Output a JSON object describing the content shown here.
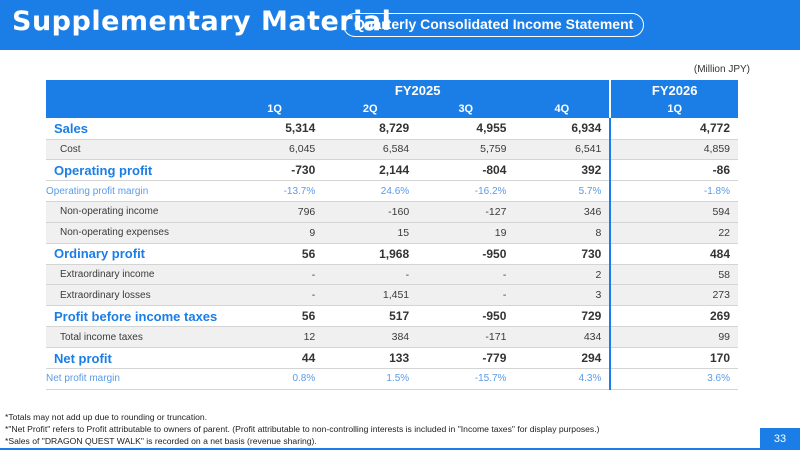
{
  "header": {
    "title": "Supplementary Material",
    "subtitle": "Quarterly Consolidated Income Statement"
  },
  "unit": "(Million JPY)",
  "table": {
    "fy2025": "FY2025",
    "fy2026": "FY2026",
    "quarters": [
      "1Q",
      "2Q",
      "3Q",
      "4Q",
      "1Q"
    ],
    "rows": [
      {
        "type": "main",
        "label": "Sales",
        "values": [
          "5,314",
          "8,729",
          "4,955",
          "6,934",
          "4,772"
        ]
      },
      {
        "type": "sub",
        "label": "Cost",
        "values": [
          "6,045",
          "6,584",
          "5,759",
          "6,541",
          "4,859"
        ]
      },
      {
        "type": "main",
        "label": "Operating profit",
        "values": [
          "-730",
          "2,144",
          "-804",
          "392",
          "-86"
        ]
      },
      {
        "type": "ratio",
        "label": "Operating profit margin",
        "values": [
          "-13.7%",
          "24.6%",
          "-16.2%",
          "5.7%",
          "-1.8%"
        ]
      },
      {
        "type": "sub",
        "label": "Non-operating income",
        "values": [
          "796",
          "-160",
          "-127",
          "346",
          "594"
        ]
      },
      {
        "type": "sub",
        "label": "Non-operating expenses",
        "values": [
          "9",
          "15",
          "19",
          "8",
          "22"
        ]
      },
      {
        "type": "main",
        "label": "Ordinary profit",
        "values": [
          "56",
          "1,968",
          "-950",
          "730",
          "484"
        ]
      },
      {
        "type": "sub",
        "label": "Extraordinary income",
        "values": [
          "-",
          "-",
          "-",
          "2",
          "58"
        ]
      },
      {
        "type": "sub",
        "label": "Extraordinary losses",
        "values": [
          "-",
          "1,451",
          "-",
          "3",
          "273"
        ]
      },
      {
        "type": "main",
        "label": "Profit before income taxes",
        "values": [
          "56",
          "517",
          "-950",
          "729",
          "269"
        ]
      },
      {
        "type": "sub",
        "label": "Total income taxes",
        "values": [
          "12",
          "384",
          "-171",
          "434",
          "99"
        ]
      },
      {
        "type": "main",
        "label": "Net profit",
        "values": [
          "44",
          "133",
          "-779",
          "294",
          "170"
        ]
      },
      {
        "type": "ratio",
        "label": "Net profit margin",
        "values": [
          "0.8%",
          "1.5%",
          "-15.7%",
          "4.3%",
          "3.6%"
        ]
      }
    ]
  },
  "notes": [
    "*Totals may not add up due to rounding or truncation.",
    "*\"Net Profit\" refers to Profit attributable to owners of parent. (Profit attributable to non-controlling interests is included in \"Income taxes\" for display purposes.)",
    "*Sales of \"DRAGON QUEST WALK\" is recorded on a net basis (revenue sharing)."
  ],
  "page_number": "33",
  "colors": {
    "accent": "#1a7ee6",
    "ratio": "#5a9be8",
    "row_shade": "#f0f0f0"
  }
}
